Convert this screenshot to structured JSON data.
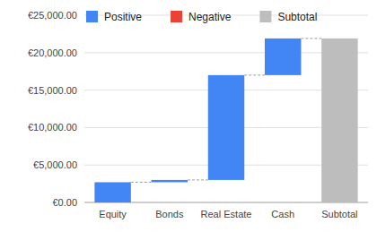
{
  "chart_data": {
    "type": "waterfall",
    "categories": [
      "Equity",
      "Bonds",
      "Real Estate",
      "Cash",
      "Subtotal"
    ],
    "series": [
      {
        "name": "Positive",
        "color": "#4285f4",
        "type": "increase",
        "values": [
          2700,
          300,
          14000,
          4900,
          null
        ]
      },
      {
        "name": "Negative",
        "color": "#ea4335",
        "type": "decrease",
        "values": [
          null,
          null,
          null,
          null,
          null
        ]
      },
      {
        "name": "Subtotal",
        "color": "#bdbdbd",
        "type": "total",
        "values": [
          null,
          null,
          null,
          null,
          21900
        ]
      }
    ],
    "ylim": [
      0,
      25000
    ],
    "yticks": [
      {
        "value": 0,
        "label": "€0.00"
      },
      {
        "value": 5000,
        "label": "€5,000.00"
      },
      {
        "value": 10000,
        "label": "€10,000.00"
      },
      {
        "value": 15000,
        "label": "€15,000.00"
      },
      {
        "value": 20000,
        "label": "€20,000.00"
      },
      {
        "value": 25000,
        "label": "€25,000.00"
      }
    ],
    "grid": true,
    "legend": "top"
  }
}
